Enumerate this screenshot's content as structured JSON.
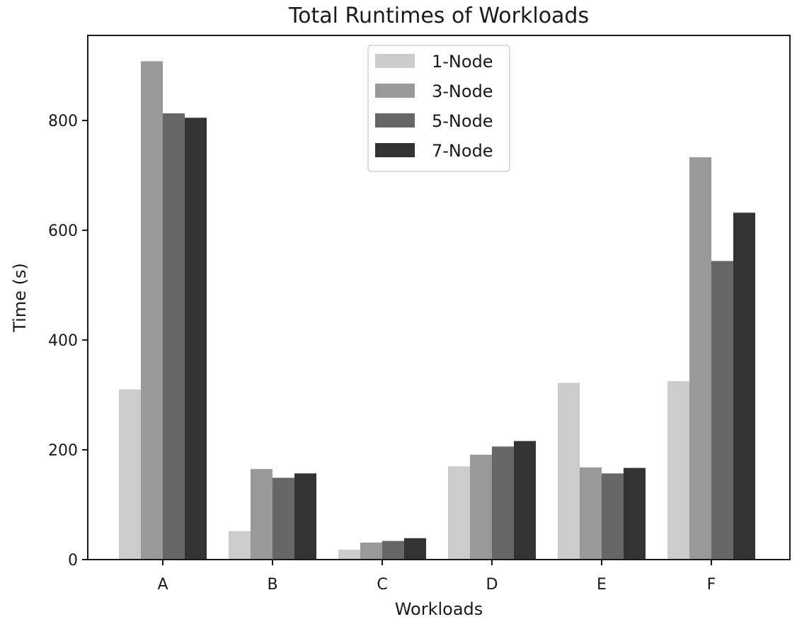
{
  "chart_data": {
    "type": "bar",
    "title": "Total Runtimes of Workloads",
    "xlabel": "Workloads",
    "ylabel": "Time (s)",
    "categories": [
      "A",
      "B",
      "C",
      "D",
      "E",
      "F"
    ],
    "ylim": [
      0,
      955
    ],
    "yticks": [
      0,
      200,
      400,
      600,
      800
    ],
    "legend_position": "top-center",
    "grid": false,
    "series": [
      {
        "name": "1-Node",
        "color": "#cccccc",
        "values": [
          310,
          52,
          18,
          170,
          322,
          325
        ]
      },
      {
        "name": "3-Node",
        "color": "#999999",
        "values": [
          908,
          165,
          31,
          191,
          168,
          733
        ]
      },
      {
        "name": "5-Node",
        "color": "#666666",
        "values": [
          813,
          149,
          34,
          206,
          157,
          544
        ]
      },
      {
        "name": "7-Node",
        "color": "#333333",
        "values": [
          805,
          157,
          39,
          216,
          167,
          632
        ]
      }
    ]
  }
}
